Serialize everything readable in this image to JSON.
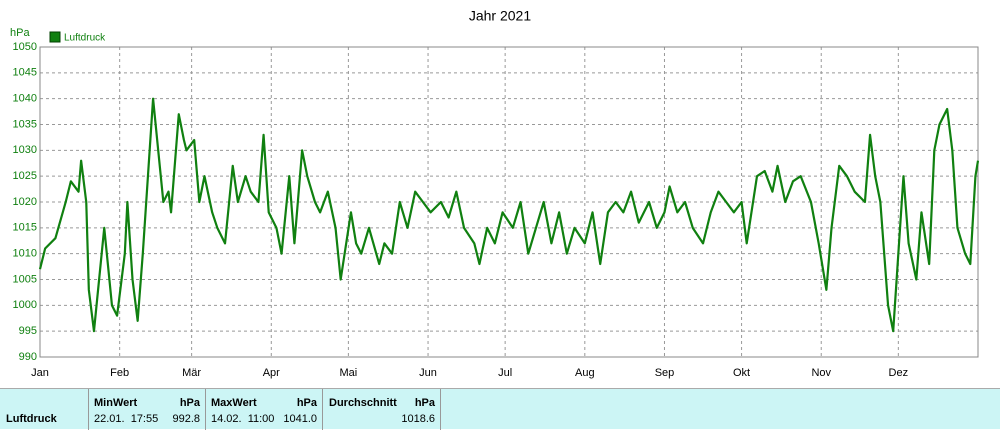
{
  "chart_data": {
    "type": "line",
    "title": "Jahr 2021",
    "y_unit": "hPa",
    "xlim": [
      0,
      365
    ],
    "xticks": [
      {
        "value": 0,
        "label": "Jan"
      },
      {
        "value": 31,
        "label": "Feb"
      },
      {
        "value": 59,
        "label": "Mär"
      },
      {
        "value": 90,
        "label": "Apr"
      },
      {
        "value": 120,
        "label": "Mai"
      },
      {
        "value": 151,
        "label": "Jun"
      },
      {
        "value": 181,
        "label": "Jul"
      },
      {
        "value": 212,
        "label": "Aug"
      },
      {
        "value": 243,
        "label": "Sep"
      },
      {
        "value": 273,
        "label": "Okt"
      },
      {
        "value": 304,
        "label": "Nov"
      },
      {
        "value": 334,
        "label": "Dez"
      }
    ],
    "ylim": [
      990,
      1050
    ],
    "yticks": [
      990,
      995,
      1000,
      1005,
      1010,
      1015,
      1020,
      1025,
      1030,
      1035,
      1040,
      1045,
      1050
    ],
    "grid": true,
    "x": [
      0,
      2,
      6,
      10,
      12,
      15,
      16,
      18,
      19,
      21,
      23,
      25,
      28,
      30,
      33,
      34,
      36,
      38,
      40,
      42,
      44,
      46,
      48,
      50,
      51,
      54,
      56,
      57,
      60,
      62,
      64,
      67,
      69,
      72,
      75,
      77,
      80,
      82,
      85,
      87,
      89,
      92,
      94,
      97,
      99,
      102,
      104,
      107,
      109,
      112,
      115,
      117,
      121,
      123,
      125,
      128,
      132,
      134,
      137,
      140,
      143,
      146,
      149,
      152,
      156,
      159,
      162,
      165,
      169,
      171,
      174,
      177,
      180,
      184,
      187,
      190,
      193,
      196,
      199,
      202,
      205,
      208,
      212,
      215,
      218,
      221,
      224,
      227,
      230,
      233,
      237,
      240,
      243,
      245,
      248,
      251,
      254,
      258,
      261,
      264,
      267,
      270,
      273,
      275,
      279,
      282,
      285,
      287,
      290,
      293,
      296,
      300,
      303,
      306,
      308,
      311,
      314,
      317,
      321,
      323,
      325,
      327,
      330,
      332,
      334,
      336,
      338,
      341,
      343,
      346,
      348,
      350,
      353,
      355,
      357,
      360,
      362,
      364,
      365
    ],
    "series": [
      {
        "name": "Luftdruck",
        "color": "#108010",
        "values": [
          1007,
          1011,
          1013,
          1020,
          1024,
          1022,
          1028,
          1020,
          1003,
          995,
          1005,
          1015,
          1000,
          998,
          1010,
          1020,
          1005,
          997,
          1010,
          1025,
          1040,
          1030,
          1020,
          1022,
          1018,
          1037,
          1032,
          1030,
          1032,
          1020,
          1025,
          1018,
          1015,
          1012,
          1027,
          1020,
          1025,
          1022,
          1020,
          1033,
          1018,
          1015,
          1010,
          1025,
          1012,
          1030,
          1025,
          1020,
          1018,
          1022,
          1015,
          1005,
          1018,
          1012,
          1010,
          1015,
          1008,
          1012,
          1010,
          1020,
          1015,
          1022,
          1020,
          1018,
          1020,
          1017,
          1022,
          1015,
          1012,
          1008,
          1015,
          1012,
          1018,
          1015,
          1020,
          1010,
          1015,
          1020,
          1012,
          1018,
          1010,
          1015,
          1012,
          1018,
          1008,
          1018,
          1020,
          1018,
          1022,
          1016,
          1020,
          1015,
          1018,
          1023,
          1018,
          1020,
          1015,
          1012,
          1018,
          1022,
          1020,
          1018,
          1020,
          1012,
          1025,
          1026,
          1022,
          1027,
          1020,
          1024,
          1025,
          1020,
          1012,
          1003,
          1015,
          1027,
          1025,
          1022,
          1020,
          1033,
          1025,
          1020,
          1000,
          995,
          1010,
          1025,
          1012,
          1005,
          1018,
          1008,
          1030,
          1035,
          1038,
          1030,
          1015,
          1010,
          1008,
          1025,
          1028
        ]
      }
    ],
    "legend": "top-left"
  },
  "table": {
    "row_label": "Luftdruck",
    "min": {
      "header": "MinWert",
      "unit": "hPa",
      "time": "22.01.  17:55",
      "value": "992.8"
    },
    "max": {
      "header": "MaxWert",
      "unit": "hPa",
      "time": "14.02.  11:00",
      "value": "1041.0"
    },
    "avg": {
      "header": "Durchschnitt",
      "unit": "hPa",
      "value": "1018.6"
    }
  }
}
